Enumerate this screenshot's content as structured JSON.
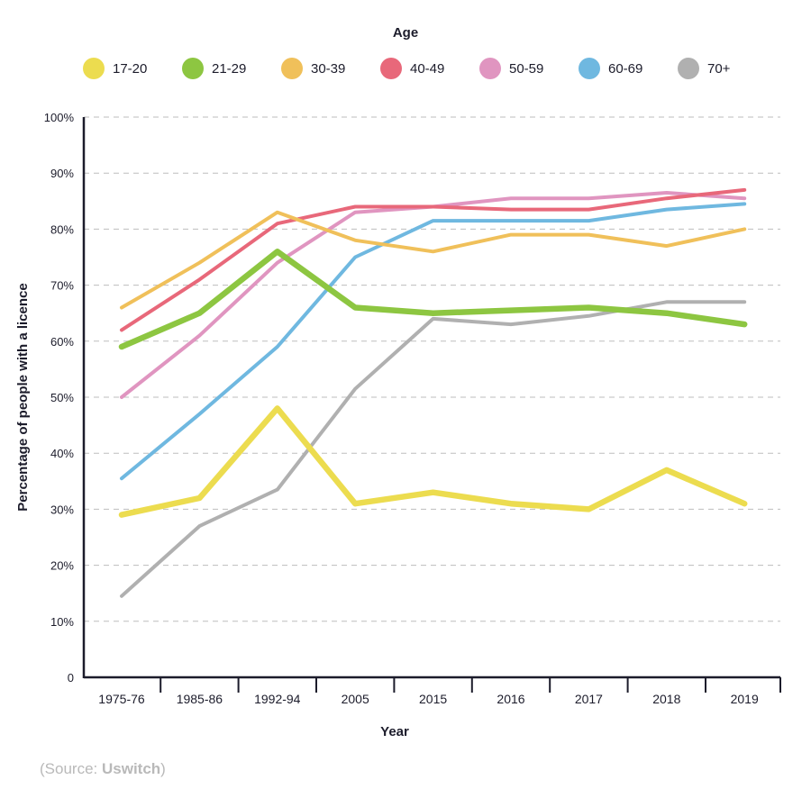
{
  "chart_data": {
    "type": "line",
    "legend_title": "Age",
    "legend_position": "top",
    "xlabel": "Year",
    "ylabel": "Percentage of people with a licence",
    "categories": [
      "1975-76",
      "1985-86",
      "1992-94",
      "2005",
      "2015",
      "2016",
      "2017",
      "2018",
      "2019"
    ],
    "yticks": [
      "0",
      "10%",
      "20%",
      "30%",
      "40%",
      "50%",
      "60%",
      "70%",
      "80%",
      "90%",
      "100%"
    ],
    "ylim": [
      0,
      100
    ],
    "grid": true,
    "series": [
      {
        "name": "17-20",
        "color": "#ecdc4f",
        "values": [
          29,
          32,
          48,
          31,
          33,
          31,
          30,
          37,
          31
        ]
      },
      {
        "name": "21-29",
        "color": "#8dc641",
        "values": [
          59,
          65,
          76,
          66,
          65,
          65.5,
          66,
          65,
          63
        ]
      },
      {
        "name": "30-39",
        "color": "#f0c05a",
        "values": [
          66,
          74,
          83,
          78,
          76,
          79,
          79,
          77,
          80
        ]
      },
      {
        "name": "40-49",
        "color": "#e8687a",
        "values": [
          62,
          71,
          81,
          84,
          84,
          83.5,
          83.5,
          85.5,
          87
        ]
      },
      {
        "name": "50-59",
        "color": "#e095c0",
        "values": [
          50,
          61,
          74,
          83,
          84,
          85.5,
          85.5,
          86.5,
          85.5
        ]
      },
      {
        "name": "60-69",
        "color": "#6fb8e0",
        "values": [
          35.5,
          47,
          59,
          75,
          81.5,
          81.5,
          81.5,
          83.5,
          84.5
        ]
      },
      {
        "name": "70+",
        "color": "#b0b0b0",
        "values": [
          14.5,
          27,
          33.5,
          51.5,
          64,
          63,
          64.5,
          67,
          67
        ]
      }
    ]
  },
  "source": {
    "prefix": "(Source: ",
    "name": "Uswitch",
    "suffix": ")"
  }
}
